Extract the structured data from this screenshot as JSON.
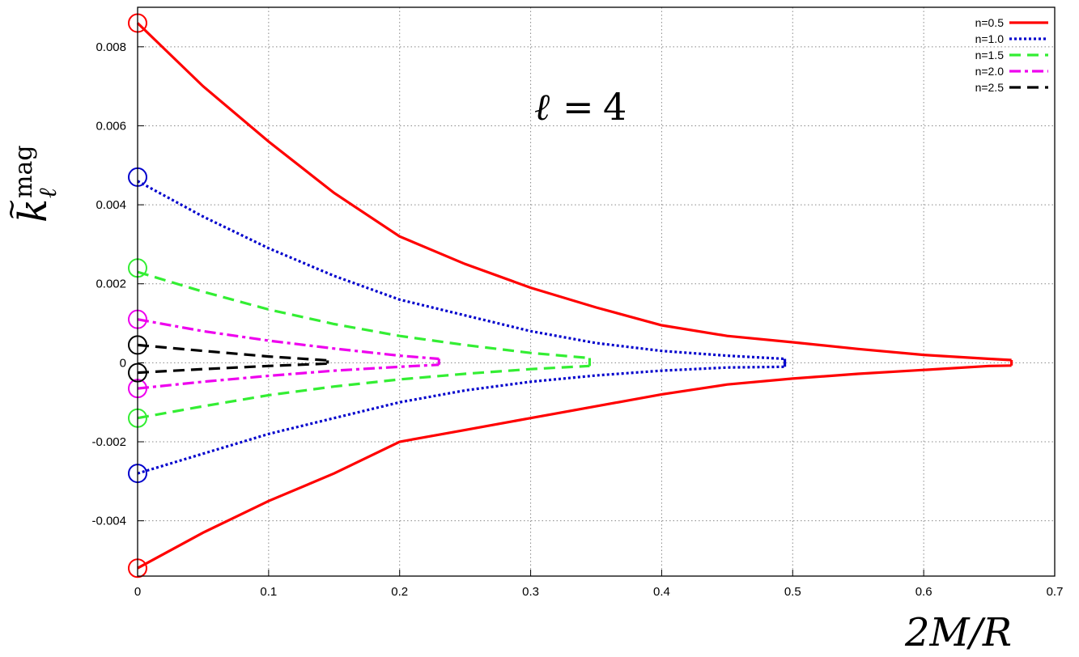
{
  "chart_data": {
    "type": "line",
    "title": "",
    "annotation": {
      "symbol": "ℓ",
      "operator": "=",
      "value": "4"
    },
    "xlabel": "2M/R",
    "ylabel": {
      "base": "k",
      "accent": "~",
      "superscript": "mag",
      "subscript": "ℓ"
    },
    "xlim": [
      0,
      0.7
    ],
    "ylim": [
      -0.0054,
      0.009
    ],
    "x_ticks": [
      0,
      0.1,
      0.2,
      0.3,
      0.4,
      0.5,
      0.6,
      0.7
    ],
    "x_tick_labels": [
      "0",
      "0.1",
      "0.2",
      "0.3",
      "0.4",
      "0.5",
      "0.6",
      "0.7"
    ],
    "y_ticks": [
      -0.004,
      -0.002,
      0,
      0.002,
      0.004,
      0.006,
      0.008
    ],
    "y_tick_labels": [
      "-0.004",
      "-0.002",
      "0",
      "0.002",
      "0.004",
      "0.006",
      "0.008"
    ],
    "grid": true,
    "legend_position": "top-right",
    "series": [
      {
        "name": "n=0.5",
        "color": "#ff0000",
        "dash": "solid",
        "upper": {
          "x": [
            0,
            0.05,
            0.1,
            0.15,
            0.2,
            0.25,
            0.3,
            0.35,
            0.4,
            0.45,
            0.5,
            0.55,
            0.6,
            0.65,
            0.667
          ],
          "y": [
            0.0086,
            0.007,
            0.0056,
            0.0043,
            0.0032,
            0.0025,
            0.0019,
            0.0014,
            0.00095,
            0.00068,
            0.00052,
            0.00035,
            0.0002,
            0.0001,
            7e-05
          ]
        },
        "lower": {
          "x": [
            0,
            0.05,
            0.1,
            0.15,
            0.2,
            0.25,
            0.3,
            0.35,
            0.4,
            0.45,
            0.5,
            0.55,
            0.6,
            0.65,
            0.667
          ],
          "y": [
            -0.0052,
            -0.0043,
            -0.0035,
            -0.0028,
            -0.002,
            -0.0017,
            -0.0014,
            -0.0011,
            -0.0008,
            -0.00055,
            -0.0004,
            -0.00028,
            -0.00018,
            -8e-05,
            -7e-05
          ]
        },
        "marker_upper": 0.0086,
        "marker_lower": -0.0052
      },
      {
        "name": "n=1.0",
        "color": "#0000cc",
        "dash": "dotted",
        "upper": {
          "x": [
            0,
            0.05,
            0.1,
            0.15,
            0.2,
            0.25,
            0.3,
            0.35,
            0.4,
            0.45,
            0.494
          ],
          "y": [
            0.0046,
            0.0037,
            0.0029,
            0.0022,
            0.0016,
            0.0012,
            0.0008,
            0.0005,
            0.0003,
            0.00018,
            0.0001
          ]
        },
        "lower": {
          "x": [
            0,
            0.05,
            0.1,
            0.15,
            0.2,
            0.25,
            0.3,
            0.35,
            0.4,
            0.45,
            0.494
          ],
          "y": [
            -0.0028,
            -0.0023,
            -0.0018,
            -0.0014,
            -0.001,
            -0.0007,
            -0.00048,
            -0.00032,
            -0.0002,
            -0.00012,
            -0.0001
          ]
        },
        "marker_upper": 0.0047,
        "marker_lower": -0.0028
      },
      {
        "name": "n=1.5",
        "color": "#33ee33",
        "dash": "dashed",
        "upper": {
          "x": [
            0,
            0.05,
            0.1,
            0.15,
            0.2,
            0.25,
            0.3,
            0.345
          ],
          "y": [
            0.0023,
            0.0018,
            0.00135,
            0.00098,
            0.00068,
            0.00045,
            0.00025,
            0.00012
          ]
        },
        "lower": {
          "x": [
            0,
            0.05,
            0.1,
            0.15,
            0.2,
            0.25,
            0.3,
            0.345
          ],
          "y": [
            -0.0014,
            -0.0011,
            -0.00082,
            -0.0006,
            -0.00042,
            -0.00028,
            -0.00016,
            -8e-05
          ]
        },
        "marker_upper": 0.0024,
        "marker_lower": -0.0014
      },
      {
        "name": "n=2.0",
        "color": "#ee00ee",
        "dash": "dashdot",
        "upper": {
          "x": [
            0,
            0.05,
            0.1,
            0.15,
            0.2,
            0.23
          ],
          "y": [
            0.0011,
            0.0008,
            0.00056,
            0.00036,
            0.00018,
            0.0001
          ]
        },
        "lower": {
          "x": [
            0,
            0.05,
            0.1,
            0.15,
            0.2,
            0.23
          ],
          "y": [
            -0.00065,
            -0.00048,
            -0.00033,
            -0.0002,
            -0.0001,
            -5e-05
          ]
        },
        "marker_upper": 0.0011,
        "marker_lower": -0.00065
      },
      {
        "name": "n=2.5",
        "color": "#000000",
        "dash": "dashed",
        "upper": {
          "x": [
            0,
            0.05,
            0.1,
            0.145
          ],
          "y": [
            0.00045,
            0.0003,
            0.00016,
            6e-05
          ]
        },
        "lower": {
          "x": [
            0,
            0.05,
            0.1,
            0.145
          ],
          "y": [
            -0.00025,
            -0.00016,
            -8e-05,
            -2e-05
          ]
        },
        "marker_upper": 0.00045,
        "marker_lower": -0.00025
      }
    ]
  }
}
